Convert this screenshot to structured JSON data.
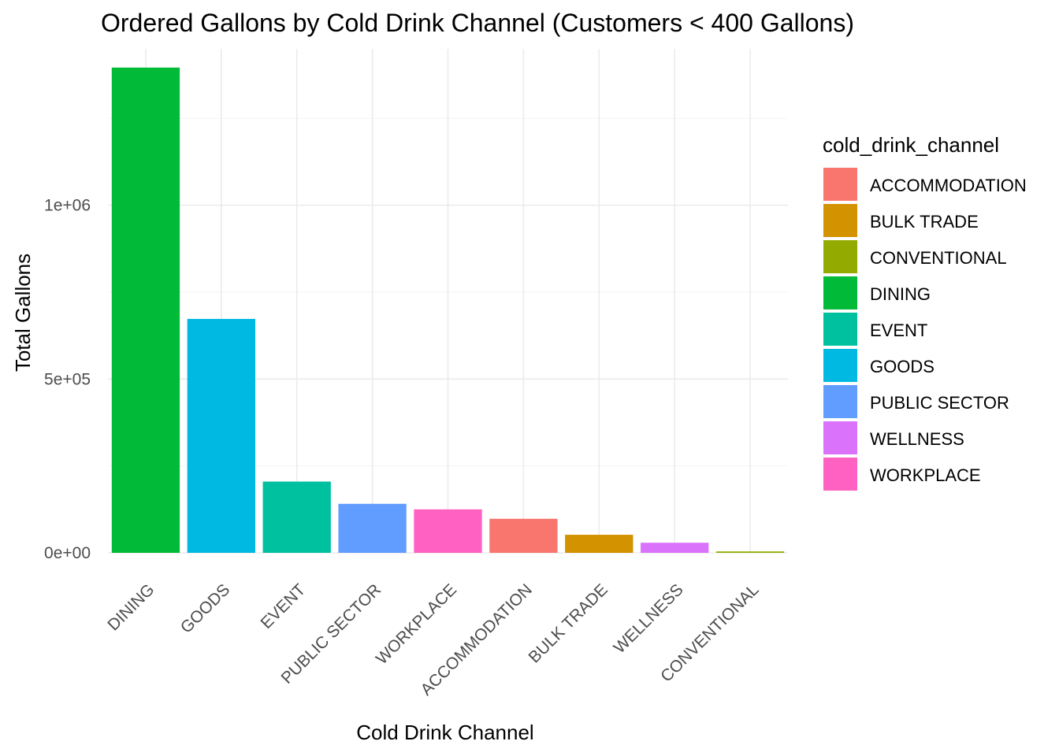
{
  "chart_data": {
    "type": "bar",
    "title": "Ordered Gallons by Cold Drink Channel (Customers < 400 Gallons)",
    "xlabel": "Cold Drink Channel",
    "ylabel": "Total Gallons",
    "categories": [
      "DINING",
      "GOODS",
      "EVENT",
      "PUBLIC SECTOR",
      "WORKPLACE",
      "ACCOMMODATION",
      "BULK TRADE",
      "WELLNESS",
      "CONVENTIONAL"
    ],
    "values": [
      1396000,
      673000,
      205000,
      141000,
      125000,
      98000,
      52000,
      29000,
      4000
    ],
    "ylim": [
      0,
      1450000
    ],
    "y_ticks": [
      {
        "value": 0,
        "label": "0e+00"
      },
      {
        "value": 500000,
        "label": "5e+05"
      },
      {
        "value": 1000000,
        "label": "1e+06"
      }
    ],
    "grid": true,
    "legend": {
      "title": "cold_drink_channel",
      "placement": "right",
      "entries": [
        {
          "label": "ACCOMMODATION",
          "color": "#F8766D"
        },
        {
          "label": "BULK TRADE",
          "color": "#D39200"
        },
        {
          "label": "CONVENTIONAL",
          "color": "#93AA00"
        },
        {
          "label": "DINING",
          "color": "#00BA38"
        },
        {
          "label": "EVENT",
          "color": "#00C19F"
        },
        {
          "label": "GOODS",
          "color": "#00B9E3"
        },
        {
          "label": "PUBLIC SECTOR",
          "color": "#619CFF"
        },
        {
          "label": "WELLNESS",
          "color": "#DB72FB"
        },
        {
          "label": "WORKPLACE",
          "color": "#FF61C3"
        }
      ]
    }
  }
}
